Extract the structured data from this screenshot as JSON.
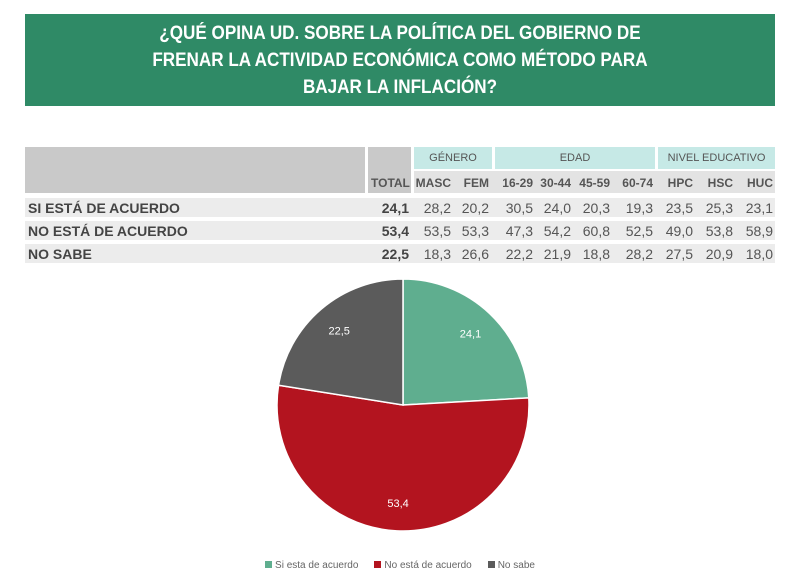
{
  "title": "¿QUÉ OPINA UD. SOBRE LA POLÍTICA DEL GOBIERNO DE FRENAR LA ACTIVIDAD ECONÓMICA COMO MÉTODO PARA BAJAR LA INFLACIÓN?",
  "table": {
    "groups": [
      "GÉNERO",
      "EDAD",
      "NIVEL EDUCATIVO"
    ],
    "columns": [
      "TOTAL",
      "MASC",
      "FEM",
      "16-29",
      "30-44",
      "45-59",
      "60-74",
      "HPC",
      "HSC",
      "HUC"
    ],
    "rows": [
      {
        "label": "SI ESTÁ DE ACUERDO",
        "values": [
          "24,1",
          "28,2",
          "20,2",
          "30,5",
          "24,0",
          "20,3",
          "19,3",
          "23,5",
          "25,3",
          "23,1"
        ]
      },
      {
        "label": "NO ESTÁ DE ACUERDO",
        "values": [
          "53,4",
          "53,5",
          "53,3",
          "47,3",
          "54,2",
          "60,8",
          "52,5",
          "49,0",
          "53,8",
          "58,9"
        ]
      },
      {
        "label": "NO SABE",
        "values": [
          "22,5",
          "18,3",
          "26,6",
          "22,2",
          "21,9",
          "18,8",
          "28,2",
          "27,5",
          "20,9",
          "18,0"
        ]
      }
    ]
  },
  "chart_data": {
    "type": "pie",
    "categories": [
      "Si esta de acuerdo",
      "No está de acuerdo",
      "No sabe"
    ],
    "values": [
      24.1,
      53.4,
      22.5
    ],
    "labels": [
      "24,1",
      "53,4",
      "22,5"
    ],
    "colors": [
      "#5fae8f",
      "#b3141f",
      "#5b5b5b"
    ],
    "legend": "bottom"
  }
}
